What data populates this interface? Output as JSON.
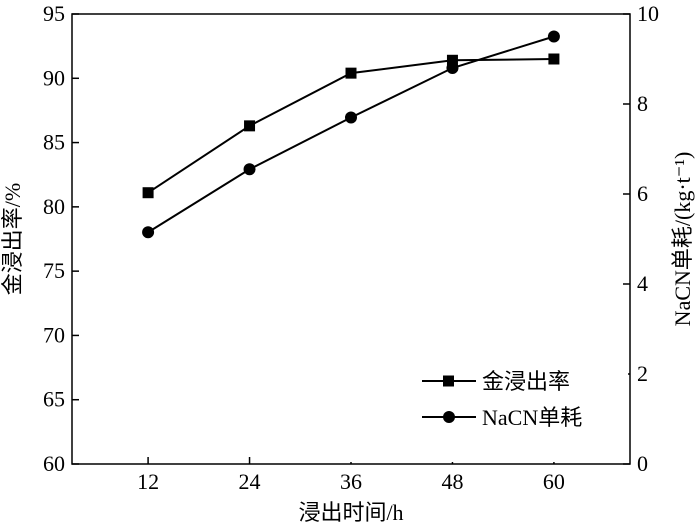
{
  "chart_data": {
    "type": "line",
    "x": [
      12,
      24,
      36,
      48,
      60
    ],
    "xlabel": "浸出时间/h",
    "ylabel_left": "金浸出率/%",
    "ylabel_right": "NaCN单耗/(kg·t⁻¹)",
    "xlim": [
      3,
      69
    ],
    "ylim_left": [
      60,
      95
    ],
    "ylim_right": [
      0,
      10
    ],
    "x_ticks": [
      "12",
      "24",
      "36",
      "48",
      "60"
    ],
    "y_left_ticks": [
      "60",
      "65",
      "70",
      "75",
      "80",
      "85",
      "90",
      "95"
    ],
    "y_right_ticks": [
      "0",
      "2",
      "4",
      "6",
      "8",
      "10"
    ],
    "series": [
      {
        "name": "金浸出率",
        "axis": "left",
        "marker": "square",
        "values": [
          81.1,
          86.3,
          90.4,
          91.4,
          91.5
        ]
      },
      {
        "name": "NaCN单耗",
        "axis": "right",
        "marker": "circle",
        "values": [
          5.15,
          6.55,
          7.7,
          8.8,
          9.5
        ]
      }
    ],
    "legend_position": "bottom-right",
    "grid": false
  }
}
